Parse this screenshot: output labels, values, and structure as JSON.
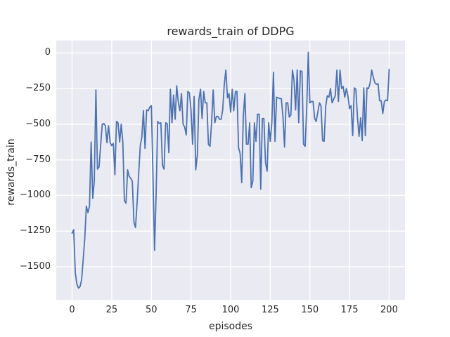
{
  "figure": {
    "title": "rewards_train of DDPG",
    "xlabel": "episodes",
    "ylabel": "rewards_train",
    "background_color": "#ffffff",
    "axes_background_color": "#eaeaf2",
    "grid_color": "#ffffff",
    "line_color": "#4c72b0",
    "text_color": "#262626"
  },
  "chart_data": {
    "type": "line",
    "title": "rewards_train of DDPG",
    "xlabel": "episodes",
    "ylabel": "rewards_train",
    "grid": true,
    "legend": false,
    "xlim": [
      -10,
      210
    ],
    "ylim": [
      -1733,
      88
    ],
    "x_ticks": [
      0,
      25,
      50,
      75,
      100,
      125,
      150,
      175,
      200
    ],
    "x_tick_labels": [
      "0",
      "25",
      "50",
      "75",
      "100",
      "125",
      "150",
      "175",
      "200"
    ],
    "y_ticks": [
      0,
      -250,
      -500,
      -750,
      -1000,
      -1250,
      -1500
    ],
    "y_tick_labels": [
      "0",
      "−250",
      "−500",
      "−750",
      "−1000",
      "−1250",
      "−1500"
    ],
    "series": [
      {
        "name": "rewards_train",
        "color": "#4c72b0",
        "x_start": 0,
        "x_step": 1,
        "values": [
          -1265,
          -1240,
          -1545,
          -1620,
          -1650,
          -1640,
          -1590,
          -1450,
          -1300,
          -1075,
          -1120,
          -1075,
          -625,
          -1020,
          -900,
          -260,
          -815,
          -800,
          -650,
          -500,
          -495,
          -510,
          -630,
          -510,
          -630,
          -650,
          -635,
          -855,
          -480,
          -490,
          -625,
          -500,
          -625,
          -1035,
          -1055,
          -820,
          -865,
          -880,
          -900,
          -1190,
          -1225,
          -1050,
          -850,
          -650,
          -590,
          -405,
          -670,
          -400,
          -405,
          -380,
          -370,
          -845,
          -1385,
          -1000,
          -480,
          -495,
          -490,
          -790,
          -815,
          -490,
          -495,
          -700,
          -255,
          -490,
          -295,
          -465,
          -230,
          -345,
          -405,
          -285,
          -500,
          -520,
          -575,
          -270,
          -280,
          -400,
          -640,
          -305,
          -820,
          -715,
          -325,
          -255,
          -460,
          -270,
          -350,
          -350,
          -640,
          -655,
          -490,
          -260,
          -490,
          -445,
          -445,
          -465,
          -465,
          -400,
          -220,
          -120,
          -315,
          -285,
          -415,
          -255,
          -405,
          -270,
          -270,
          -665,
          -705,
          -910,
          -445,
          -285,
          -640,
          -640,
          -490,
          -945,
          -900,
          -490,
          -620,
          -430,
          -430,
          -955,
          -460,
          -460,
          -770,
          -830,
          -490,
          -620,
          -490,
          -135,
          -620,
          -310,
          -315,
          -320,
          -320,
          -445,
          -660,
          -350,
          -350,
          -450,
          -435,
          -120,
          -195,
          -400,
          -120,
          -490,
          -125,
          -130,
          -640,
          -655,
          -385,
          5,
          -350,
          -340,
          -340,
          -460,
          -480,
          -415,
          -350,
          -370,
          -615,
          -620,
          -370,
          -300,
          -310,
          -250,
          -350,
          -325,
          -300,
          -120,
          -340,
          -120,
          -250,
          -235,
          -310,
          -250,
          -300,
          -390,
          -370,
          -580,
          -245,
          -255,
          -450,
          -585,
          -455,
          -615,
          -245,
          -580,
          -245,
          -250,
          -210,
          -120,
          -170,
          -210,
          -220,
          -215,
          -335,
          -335,
          -425,
          -340,
          -330,
          -335,
          -115
        ]
      }
    ]
  }
}
